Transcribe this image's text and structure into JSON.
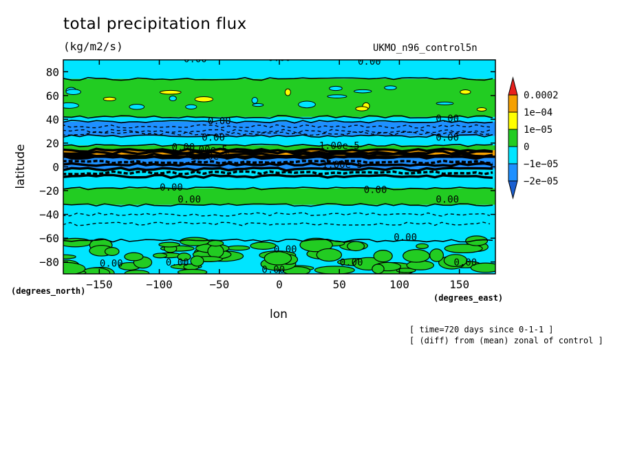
{
  "chart_data": {
    "type": "heatmap",
    "title": "total precipitation flux",
    "units": "(kg/m2/s)",
    "model": "UKMO_n96_control5n",
    "xlabel": "lon",
    "ylabel": "latitude",
    "xunit": "(degrees_east)",
    "yunit": "(degrees_north)",
    "xlim": [
      -180,
      180
    ],
    "ylim": [
      -90,
      90
    ],
    "xticks": [
      -150,
      -100,
      -50,
      0,
      50,
      100,
      150
    ],
    "yticks": [
      -80,
      -60,
      -40,
      -20,
      0,
      20,
      40,
      60,
      80
    ],
    "legend": {
      "placement": "right",
      "levels": [
        "0.0002",
        "1e-04",
        "1e-05",
        "0",
        "-1e-05",
        "-2e-05"
      ],
      "colors": [
        "#e8201c",
        "#f5a000",
        "#ffff00",
        "#22cc22",
        "#00e5ff",
        "#1e90ff",
        "#1a5fd0"
      ]
    },
    "contour_labels": [
      "0.00",
      "-1.00e-5",
      "1.00e-5"
    ],
    "bands": [
      {
        "lat_from": 90,
        "lat_to": 74,
        "color": "#00e5ff"
      },
      {
        "lat_from": 74,
        "lat_to": 42,
        "color": "#22cc22"
      },
      {
        "lat_from": 42,
        "lat_to": 38,
        "color": "#00e5ff"
      },
      {
        "lat_from": 38,
        "lat_to": 26,
        "color": "#1e90ff"
      },
      {
        "lat_from": 26,
        "lat_to": 18,
        "color": "#00e5ff"
      },
      {
        "lat_from": 18,
        "lat_to": 14,
        "color": "#22cc22"
      },
      {
        "lat_from": 14,
        "lat_to": 8,
        "color": "#f5a000"
      },
      {
        "lat_from": 8,
        "lat_to": -2,
        "color": "#1e90ff"
      },
      {
        "lat_from": -2,
        "lat_to": -8,
        "color": "#00e5ff"
      },
      {
        "lat_from": -8,
        "lat_to": -18,
        "color": "#00e5ff"
      },
      {
        "lat_from": -18,
        "lat_to": -32,
        "color": "#22cc22"
      },
      {
        "lat_from": -32,
        "lat_to": -62,
        "color": "#00e5ff"
      },
      {
        "lat_from": -62,
        "lat_to": -90,
        "color": "#00e5ff"
      }
    ],
    "patches": [
      {
        "lon": [
          -180,
          180
        ],
        "lat": [
          -62,
          -90
        ],
        "color": "#22cc22",
        "density": 0.45
      }
    ],
    "notes": [
      "[ time=720 days since 0-1-1 ]",
      "[ (diff) from (mean) zonal of control ]"
    ]
  }
}
